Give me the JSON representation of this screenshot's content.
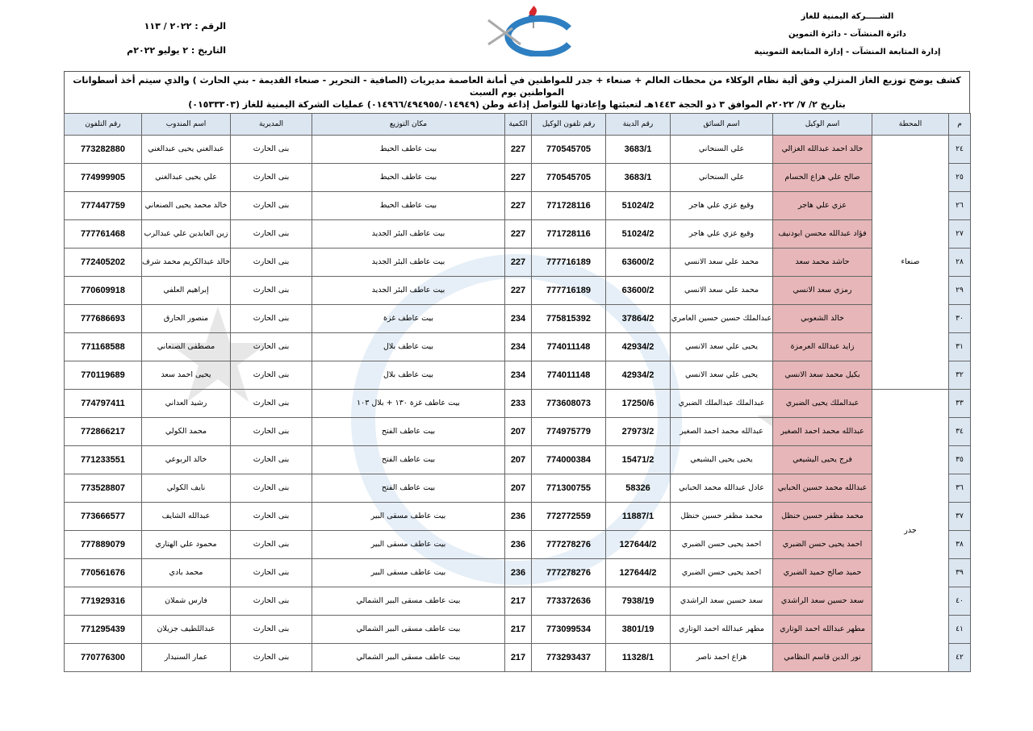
{
  "header": {
    "company": "الشـــــركة اليمنية للغاز",
    "dept1": "دائرة المنشآت - دائرة التموين",
    "dept2": "إدارة المتابعة المنشآت - إدارة المتابعة التموينية",
    "ref": "الرقم : ٢٠٢٢ / ١١٣",
    "date": "التاريخ : ٢ يوليو ٢٠٢٢م"
  },
  "title": {
    "line1": "كشف يوضح توزيع الغاز المنزلي وفق ألية نظام الوكلاء من محطات العالم + صنعاء + جدر للمواطنين في أمانة العاصمة مديريات (الصافية - التحرير - صنعاء القديمة - بني الحارث ) والذي سيتم أخذ أسطوانات المواطنين يوم السبت",
    "line2": "بتاريخ ٢/ ٧/ ٢٠٢٢م الموافق ٣ ذو الحجة ١٤٤٣هـ لتعبئتها وإعادتها للتواصل إذاعة وطن (٠١٤٩٦٦/٤٩٤٩٥٥/٠١٤٩٤٩) عمليات الشركة اليمنية للغاز (٠١٥٣٣٣٠٣)"
  },
  "columns": [
    "م",
    "المحطة",
    "اسم الوكيل",
    "اسم السائق",
    "رقم الدينة",
    "رقم تلفون الوكيل",
    "الكمية",
    "مكان التوزيع",
    "المديرية",
    "اسم المندوب",
    "رقم التلفون"
  ],
  "stations": [
    {
      "name": "صنعاء",
      "rows": 9
    },
    {
      "name": "جدر",
      "rows": 10
    }
  ],
  "rows": [
    [
      "٢٤",
      "خالد احمد عبدالله الغزالي",
      "علي السنحاني",
      "3683/1",
      "770545705",
      "227",
      "بيت عاطف الحيط",
      "بنى الحارث",
      "عبدالغني يحيى عبدالغني",
      "773282880"
    ],
    [
      "٢٥",
      "صالح علي هزاع الحسام",
      "علي السنحاني",
      "3683/1",
      "770545705",
      "227",
      "بيت عاطف الحيط",
      "بنى الحارث",
      "علي يحيى عبدالغني",
      "774999905"
    ],
    [
      "٢٦",
      "عزي علي هاجر",
      "وقيع عزي علي هاجر",
      "51024/2",
      "771728116",
      "227",
      "بيت عاطف الحيط",
      "بنى الحارث",
      "خالد محمد يحيى الصنعاني",
      "777447759"
    ],
    [
      "٢٧",
      "فؤاد عبدالله محسن ابودنيف",
      "وقيع عزي علي هاجر",
      "51024/2",
      "771728116",
      "227",
      "بيت عاطف البئر الجديد",
      "بنى الحارث",
      "زين العابدين علي عبدالرب",
      "777761468"
    ],
    [
      "٢٨",
      "حاشد محمد سعد",
      "محمد علي سعد الانسي",
      "63600/2",
      "777716189",
      "227",
      "بيت عاطف البئر الجديد",
      "بنى الحارث",
      "خالد عبدالكريم محمد شرف",
      "772405202"
    ],
    [
      "٢٩",
      "رمزي سعد الانسي",
      "محمد علي سعد الانسي",
      "63600/2",
      "777716189",
      "227",
      "بيت عاطف البئر الجديد",
      "بنى الحارث",
      "إبراهيم العلفي",
      "770609918"
    ],
    [
      "٣٠",
      "خالد الشعوبي",
      "عبدالملك حسين حسين العامري",
      "37864/2",
      "775815392",
      "234",
      "بيت عاطف غزة",
      "بنى الحارث",
      "منصور الحارق",
      "777686693"
    ],
    [
      "٣١",
      "زايد عبدالله العرمزة",
      "يحيى علي سعد الانسي",
      "42934/2",
      "774011148",
      "234",
      "بيت عاطف بلال",
      "بنى الحارث",
      "مصطفى الصنعاني",
      "771168588"
    ],
    [
      "٣٢",
      "بكيل محمد سعد الانسي",
      "يحيى علي سعد الانسي",
      "42934/2",
      "774011148",
      "234",
      "بيت عاطف بلال",
      "بنى الحارث",
      "يحيى احمد سعد",
      "770119689"
    ],
    [
      "٣٣",
      "عبدالملك يحيى الضبري",
      "عبدالملك عبدالملك الضبري",
      "17250/6",
      "773608073",
      "233",
      "بيت عاطف غزة ١٣٠ + بلال ١٠٣",
      "بنى الحارث",
      "رشيد العداني",
      "774797411"
    ],
    [
      "٣٤",
      "عبدالله محمد احمد الصغير",
      "عبدالله محمد احمد الصغير",
      "27973/2",
      "774975779",
      "207",
      "بيت عاطف الفتح",
      "بنى الحارث",
      "محمد الكولي",
      "772866217"
    ],
    [
      "٣٥",
      "فرج يحيى اليشيعي",
      "يحيى يحيى اليشيعي",
      "15471/2",
      "774000384",
      "207",
      "بيت عاطف الفتح",
      "بنى الحارث",
      "خالد الربوعي",
      "771233551"
    ],
    [
      "٣٦",
      "عبدالله محمد حسين الحبابي",
      "عادل عبدالله محمد الحبابي",
      "58326",
      "771300755",
      "207",
      "بيت عاطف الفتح",
      "بنى الحارث",
      "نايف الكولي",
      "773528807"
    ],
    [
      "٣٧",
      "محمد مظفر حسين حنظل",
      "محمد مظفر حسين حنظل",
      "11887/1",
      "772772559",
      "236",
      "بيت عاطف مسقى البير",
      "بنى الحارث",
      "عبدالله الشايف",
      "773666577"
    ],
    [
      "٣٨",
      "احمد يحيى حسن الضبري",
      "احمد يحيى حسن الضبري",
      "127644/2",
      "777278276",
      "236",
      "بيت عاطف مسقى البير",
      "بنى الحارث",
      "محمود علي الهتاري",
      "777889079"
    ],
    [
      "٣٩",
      "حميد صالح حميد الضبري",
      "احمد يحيى حسن الضبري",
      "127644/2",
      "777278276",
      "236",
      "بيت عاطف مسقى البير",
      "بنى الحارث",
      "محمد بادي",
      "770561676"
    ],
    [
      "٤٠",
      "سعد حسين سعد الراشدي",
      "سعد حسين سعد الراشدي",
      "7938/19",
      "773372636",
      "217",
      "بيت عاطف مسقى البير الشمالي",
      "بنى الحارث",
      "فارس شملان",
      "771929316"
    ],
    [
      "٤١",
      "مطهر عبدالله احمد الوتاري",
      "مطهر عبدالله احمد الوتاري",
      "3801/19",
      "773099534",
      "217",
      "بيت عاطف مسقى البير الشمالي",
      "بنى الحارث",
      "عبداللطيف جزيلان",
      "771295439"
    ],
    [
      "٤٢",
      "نور الدين قاسم النظامي",
      "هزاع احمد ناصر",
      "11328/1",
      "773293437",
      "217",
      "بيت عاطف مسقى البير الشمالي",
      "بنى الحارث",
      "عمار السنيدار",
      "770776300"
    ]
  ],
  "colors": {
    "header_bg": "#dce6f1",
    "agent_bg": "#e6b6b8",
    "logo_blue": "#2e7fc1",
    "logo_red": "#d7262b"
  }
}
